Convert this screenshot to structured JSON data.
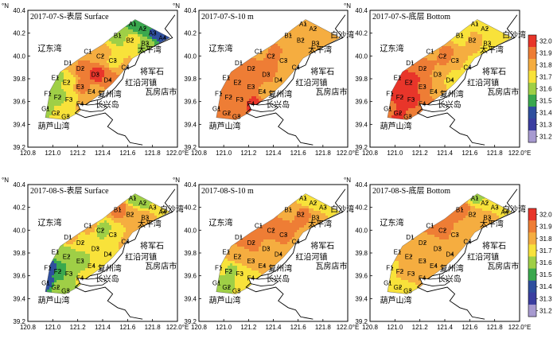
{
  "chart_data": {
    "type": "heatmap",
    "description_axes": {
      "x_ticks": [
        "120.8",
        "121.0",
        "121.2",
        "121.4",
        "121.6",
        "121.8",
        "122.0"
      ],
      "y_ticks": [
        "39.2",
        "39.4",
        "39.6",
        "39.8",
        "40.0",
        "40.2",
        "40.4"
      ],
      "x_unit": "°E",
      "y_unit": "°N",
      "xlim": [
        120.8,
        122.0
      ],
      "ylim": [
        39.2,
        40.4
      ]
    },
    "colorbar": {
      "ticks": [
        "32.0",
        "31.9",
        "31.8",
        "31.7",
        "31.6",
        "31.5",
        "31.4",
        "31.3",
        "31.2"
      ],
      "colors": [
        "#e8352a",
        "#ee7d35",
        "#f5ad40",
        "#f8e23a",
        "#9fcf46",
        "#3aa84e",
        "#2f4f9e",
        "#3b3ea0",
        "#a79ad0"
      ],
      "range": [
        31.2,
        32.0
      ]
    },
    "place_names": [
      "辽东湾",
      "太平湾",
      "将军石",
      "红沿河镇",
      "复州湾",
      "长兴岛",
      "瓦房店市",
      "葫芦山湾",
      "白沙湾"
    ],
    "panels": [
      {
        "title": "2017-07-S-表层 Surface",
        "stations": [
          "A1",
          "A2",
          "A3",
          "A4",
          "B1",
          "B2",
          "B3",
          "C1",
          "C2",
          "C3",
          "C4",
          "D1",
          "D2",
          "D3",
          "D4",
          "E1",
          "E2",
          "E3",
          "E4",
          "F1",
          "F2",
          "F3",
          "F4",
          "G1",
          "G2",
          "G3"
        ],
        "places": [
          "辽东湾",
          "太平湾",
          "将军石",
          "红沿河镇",
          "复州湾",
          "长兴岛",
          "瓦房店市",
          "葫芦山湾"
        ]
      },
      {
        "title": "2017-07-S-10 m",
        "stations": [
          "A1",
          "A2",
          "B1",
          "B2",
          "B3",
          "C1",
          "C2",
          "C3",
          "C4",
          "D1",
          "D2",
          "D3",
          "D4",
          "E1",
          "E2",
          "E3",
          "E4",
          "F1",
          "F2",
          "F3",
          "F4",
          "G1",
          "G2",
          "G3"
        ],
        "places": [
          "辽东湾",
          "白沙湾",
          "太平湾",
          "将军石",
          "红沿河镇",
          "复州湾",
          "长兴岛",
          "瓦房店市",
          "葫芦山湾"
        ]
      },
      {
        "title": "2017-07-S-底层 Bottom",
        "stations": [
          "A1",
          "A2",
          "B1",
          "B2",
          "B3",
          "C1",
          "C2",
          "C3",
          "C4",
          "D1",
          "D2",
          "D3",
          "D4",
          "E1",
          "E2",
          "E3",
          "E4",
          "F1",
          "F2",
          "F3",
          "F4",
          "G1",
          "G2",
          "G3"
        ],
        "places": [
          "辽东湾",
          "白沙湾",
          "太平湾",
          "将军石",
          "红沿河镇",
          "复州湾",
          "长兴岛",
          "瓦房店市",
          "葫芦山湾"
        ]
      },
      {
        "title": "2017-08-S-表层 Surface",
        "stations": [
          "A1",
          "A2",
          "A3",
          "A4",
          "B1",
          "B2",
          "B3",
          "C1",
          "C2",
          "C3",
          "C4",
          "D1",
          "D2",
          "D3",
          "D4",
          "E1",
          "E2",
          "E3",
          "E4",
          "F1",
          "F2",
          "F3",
          "F4",
          "G1",
          "G2",
          "G3"
        ],
        "places": [
          "辽东湾",
          "白沙湾",
          "太平湾",
          "将军石",
          "红沿河镇",
          "复州湾",
          "长兴岛",
          "瓦房店市",
          "葫芦山湾"
        ]
      },
      {
        "title": "2017-08-S-10 m",
        "stations": [
          "A1",
          "A2",
          "A3",
          "B1",
          "B2",
          "B3",
          "C1",
          "C2",
          "C3",
          "C4",
          "D1",
          "D2",
          "D3",
          "D4",
          "E1",
          "E2",
          "E3",
          "E4",
          "F1",
          "F2",
          "F3",
          "F4",
          "G1",
          "G2",
          "G3"
        ],
        "places": [
          "辽东湾",
          "白沙湾",
          "太平湾",
          "将军石",
          "红沿河镇",
          "复州湾",
          "长兴岛",
          "瓦房店市",
          "葫芦山湾"
        ]
      },
      {
        "title": "2017-08-S-底层 Bottom",
        "stations": [
          "A1",
          "A2",
          "A3",
          "A4",
          "B1",
          "B2",
          "B3",
          "C1",
          "C2",
          "C3",
          "C4",
          "D1",
          "D2",
          "D3",
          "D4",
          "E1",
          "E2",
          "E3",
          "E4",
          "F1",
          "F2",
          "F3",
          "F4",
          "G1",
          "G2",
          "G3"
        ],
        "places": [
          "辽东湾",
          "白沙湾",
          "太平湾",
          "将军石",
          "红沿河镇",
          "复州湾",
          "长兴岛",
          "瓦房店市",
          "葫芦山湾"
        ]
      }
    ]
  }
}
